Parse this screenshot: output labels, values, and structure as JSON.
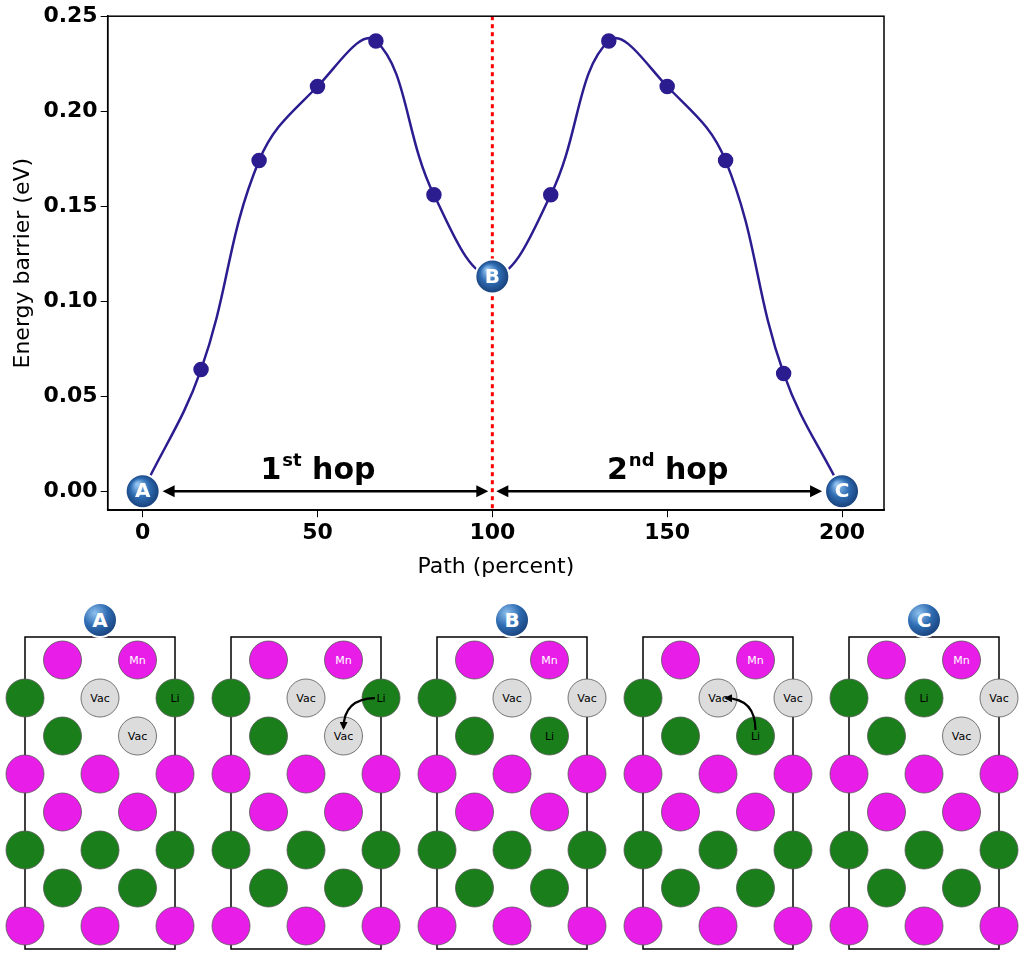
{
  "chart_data": {
    "type": "line",
    "x_label": "Path (percent)",
    "y_label": "Energy barrier (eV)",
    "x": [
      0,
      16.7,
      33.3,
      50,
      66.7,
      83.3,
      100,
      116.7,
      133.3,
      150,
      166.7,
      183.3,
      200
    ],
    "values": [
      0,
      0.064,
      0.174,
      0.213,
      0.237,
      0.156,
      0.113,
      0.156,
      0.237,
      0.213,
      0.174,
      0.062,
      0
    ],
    "color": "#2b1d8f",
    "marker": "circle",
    "xlim": [
      -10,
      212
    ],
    "xticks": [
      0,
      50,
      100,
      150,
      200
    ],
    "ylim": [
      -0.01,
      0.25
    ],
    "yticks": [
      {
        "value": 0,
        "label": "0.00"
      },
      {
        "value": 0.05,
        "label": "0.05"
      },
      {
        "value": 0.1,
        "label": "0.10"
      },
      {
        "value": 0.15,
        "label": "0.15"
      },
      {
        "value": 0.2,
        "label": "0.20"
      },
      {
        "value": 0.25,
        "label": "0.25"
      }
    ],
    "grid": false,
    "annotations": {
      "points": [
        {
          "label": "A",
          "x": 0,
          "y": 0
        },
        {
          "label": "B",
          "x": 100,
          "y": 0.113
        },
        {
          "label": "C",
          "x": 200,
          "y": 0
        }
      ],
      "vline": {
        "x": 100,
        "color": "#ff0000",
        "line_style": "dotted"
      },
      "arrows": [
        {
          "from": 0,
          "to": 100,
          "y": 0,
          "text": "1",
          "superscript": "st",
          "text_after": " hop"
        },
        {
          "from": 100,
          "to": 200,
          "y": 0,
          "text": "2",
          "superscript": "nd",
          "text_after": " hop"
        }
      ]
    }
  },
  "diagram": {
    "colors": {
      "Mn": {
        "fill": "#e81ee8",
        "text": "#ffffff"
      },
      "Li": {
        "fill": "#1a7f1a",
        "text": "#000000"
      },
      "Vac": {
        "fill": "#dcdcdc",
        "text": "#000000"
      }
    },
    "panels": [
      {
        "label": "A",
        "rows": [
          [
            "Mn",
            {
              "atom": "Mn",
              "text": "Mn"
            }
          ],
          [
            "Li",
            {
              "atom": "Vac",
              "text": "Vac"
            },
            {
              "atom": "Li",
              "text": "Li"
            }
          ],
          [
            "Li",
            {
              "atom": "Vac",
              "text": "Vac"
            }
          ],
          [
            "Mn",
            "Mn",
            "Mn"
          ],
          [
            "Mn",
            "Mn"
          ],
          [
            "Li",
            "Li",
            "Li"
          ],
          [
            "Li",
            "Li"
          ],
          [
            "Mn",
            "Mn",
            "Mn"
          ]
        ]
      },
      {
        "rows": [
          [
            "Mn",
            {
              "atom": "Mn",
              "text": "Mn"
            }
          ],
          [
            "Li",
            {
              "atom": "Vac",
              "text": "Vac"
            },
            {
              "atom": "Li",
              "text": "Li"
            }
          ],
          [
            "Li",
            {
              "atom": "Vac",
              "text": "Vac"
            }
          ],
          [
            "Mn",
            "Mn",
            "Mn"
          ],
          [
            "Mn",
            "Mn"
          ],
          [
            "Li",
            "Li",
            "Li"
          ],
          [
            "Li",
            "Li"
          ],
          [
            "Mn",
            "Mn",
            "Mn"
          ]
        ],
        "arrow": {
          "from": [
            1,
            2
          ],
          "to": [
            2,
            1
          ]
        }
      },
      {
        "label": "B",
        "rows": [
          [
            "Mn",
            {
              "atom": "Mn",
              "text": "Mn"
            }
          ],
          [
            "Li",
            {
              "atom": "Vac",
              "text": "Vac"
            },
            {
              "atom": "Vac",
              "text": "Vac"
            }
          ],
          [
            "Li",
            {
              "atom": "Li",
              "text": "Li"
            }
          ],
          [
            "Mn",
            "Mn",
            "Mn"
          ],
          [
            "Mn",
            "Mn"
          ],
          [
            "Li",
            "Li",
            "Li"
          ],
          [
            "Li",
            "Li"
          ],
          [
            "Mn",
            "Mn",
            "Mn"
          ]
        ]
      },
      {
        "rows": [
          [
            "Mn",
            {
              "atom": "Mn",
              "text": "Mn"
            }
          ],
          [
            "Li",
            {
              "atom": "Vac",
              "text": "Vac"
            },
            {
              "atom": "Vac",
              "text": "Vac"
            }
          ],
          [
            "Li",
            {
              "atom": "Li",
              "text": "Li"
            }
          ],
          [
            "Mn",
            "Mn",
            "Mn"
          ],
          [
            "Mn",
            "Mn"
          ],
          [
            "Li",
            "Li",
            "Li"
          ],
          [
            "Li",
            "Li"
          ],
          [
            "Mn",
            "Mn",
            "Mn"
          ]
        ],
        "arrow": {
          "from": [
            2,
            1
          ],
          "to": [
            1,
            1
          ]
        }
      },
      {
        "label": "C",
        "rows": [
          [
            "Mn",
            {
              "atom": "Mn",
              "text": "Mn"
            }
          ],
          [
            "Li",
            {
              "atom": "Li",
              "text": "Li"
            },
            {
              "atom": "Vac",
              "text": "Vac"
            }
          ],
          [
            "Li",
            {
              "atom": "Vac",
              "text": "Vac"
            }
          ],
          [
            "Mn",
            "Mn",
            "Mn"
          ],
          [
            "Mn",
            "Mn"
          ],
          [
            "Li",
            "Li",
            "Li"
          ],
          [
            "Li",
            "Li"
          ],
          [
            "Mn",
            "Mn",
            "Mn"
          ]
        ]
      }
    ]
  }
}
